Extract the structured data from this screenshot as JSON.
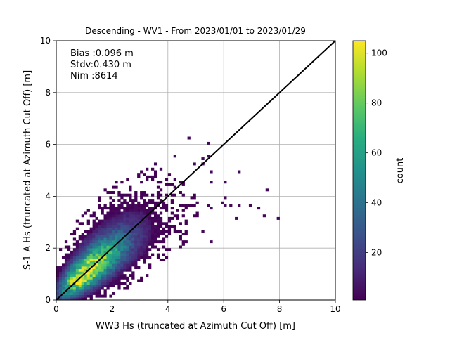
{
  "chart_data": {
    "type": "heatmap",
    "title": "Descending - WV1 - From 2023/01/01 to 2023/01/29",
    "xlabel": "WW3 Hs (truncated at Azimuth Cut Off) [m]",
    "ylabel": "S-1 A Hs (truncated at Azimuth Cut Off) [m]",
    "xlim": [
      0,
      10
    ],
    "ylim": [
      0,
      10
    ],
    "xticks": [
      "0",
      "2",
      "4",
      "6",
      "8",
      "10"
    ],
    "yticks": [
      "0",
      "2",
      "4",
      "6",
      "8",
      "10"
    ],
    "grid": true,
    "stats": [
      "Bias :0.096 m",
      "Stdv:0.430 m",
      "Nim :8614"
    ],
    "reference_line": {
      "label": "1:1",
      "from": [
        0,
        0
      ],
      "to": [
        10,
        10
      ],
      "color": "#000000"
    },
    "bin_size": 0.1,
    "colorbar": {
      "label": "count",
      "range": [
        1,
        105
      ],
      "ticks": [
        "20",
        "40",
        "60",
        "80",
        "100"
      ],
      "colormap": "viridis"
    },
    "core_density": {
      "peak_count": 105,
      "peak_at": [
        0.9,
        1.0
      ],
      "spread_along": 0.75,
      "spread_across": 0.24
    },
    "outliers": [
      [
        4.8,
        6.2
      ],
      [
        5.4,
        6.0
      ],
      [
        5.2,
        5.4
      ],
      [
        5.4,
        5.5
      ],
      [
        4.3,
        5.6
      ],
      [
        3.5,
        5.2
      ],
      [
        3.8,
        5.0
      ],
      [
        4.9,
        5.3
      ],
      [
        5.3,
        5.2
      ],
      [
        5.5,
        4.9
      ],
      [
        6.5,
        4.9
      ],
      [
        6.1,
        4.5
      ],
      [
        5.6,
        4.5
      ],
      [
        7.6,
        4.2
      ],
      [
        6.0,
        3.9
      ],
      [
        5.9,
        3.7
      ],
      [
        6.0,
        3.6
      ],
      [
        6.6,
        3.6
      ],
      [
        6.9,
        3.6
      ],
      [
        5.4,
        3.6
      ],
      [
        5.6,
        3.5
      ],
      [
        6.2,
        3.6
      ],
      [
        7.2,
        3.5
      ],
      [
        7.4,
        3.3
      ],
      [
        7.9,
        3.1
      ],
      [
        6.4,
        3.1
      ],
      [
        5.2,
        2.6
      ],
      [
        4.1,
        3.0
      ],
      [
        5.6,
        2.3
      ],
      [
        4.3,
        2.7
      ],
      [
        2.3,
        4.1
      ],
      [
        2.6,
        4.3
      ],
      [
        3.0,
        4.5
      ],
      [
        3.4,
        4.7
      ],
      [
        1.8,
        3.5
      ],
      [
        4.6,
        4.0
      ],
      [
        5.0,
        3.8
      ],
      [
        4.6,
        3.3
      ],
      [
        3.3,
        2.0
      ],
      [
        3.1,
        1.6
      ],
      [
        0.6,
        2.5
      ],
      [
        1.4,
        3.0
      ],
      [
        2.5,
        0.8
      ],
      [
        2.8,
        1.0
      ],
      [
        2.0,
        0.3
      ],
      [
        1.5,
        0.1
      ],
      [
        1.7,
        0.1
      ],
      [
        0.5,
        0.1
      ],
      [
        3.6,
        2.2
      ],
      [
        4.5,
        2.5
      ]
    ]
  }
}
